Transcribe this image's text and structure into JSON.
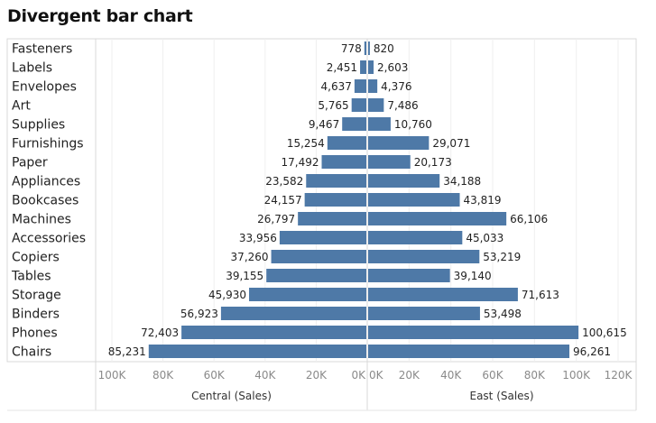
{
  "title": "Divergent bar chart",
  "chart_data": {
    "type": "bar",
    "orientation": "horizontal-diverging",
    "categories": [
      "Fasteners",
      "Labels",
      "Envelopes",
      "Art",
      "Supplies",
      "Furnishings",
      "Paper",
      "Appliances",
      "Bookcases",
      "Machines",
      "Accessories",
      "Copiers",
      "Tables",
      "Storage",
      "Binders",
      "Phones",
      "Chairs"
    ],
    "series": [
      {
        "name": "Central (Sales)",
        "side": "left",
        "values": [
          778,
          2451,
          4637,
          5765,
          9467,
          15254,
          17492,
          23582,
          24157,
          26797,
          33956,
          37260,
          39155,
          45930,
          56923,
          72403,
          85231
        ],
        "labels": [
          "778",
          "2,451",
          "4,637",
          "5,765",
          "9,467",
          "15,254",
          "17,492",
          "23,582",
          "24,157",
          "26,797",
          "33,956",
          "37,260",
          "39,155",
          "45,930",
          "56,923",
          "72,403",
          "85,231"
        ]
      },
      {
        "name": "East (Sales)",
        "side": "right",
        "values": [
          820,
          2603,
          4376,
          7486,
          10760,
          29071,
          20173,
          34188,
          43819,
          66106,
          45033,
          53219,
          39140,
          71613,
          53498,
          100615,
          96261
        ],
        "labels": [
          "820",
          "2,603",
          "4,376",
          "7,486",
          "10,760",
          "29,071",
          "20,173",
          "34,188",
          "43,819",
          "66,106",
          "45,033",
          "53,219",
          "39,140",
          "71,613",
          "53,498",
          "100,615",
          "96,261"
        ]
      }
    ],
    "left_axis": {
      "ticks": [
        100000,
        80000,
        60000,
        40000,
        20000,
        0
      ],
      "tick_labels": [
        "100K",
        "80K",
        "60K",
        "40K",
        "20K",
        "0K"
      ],
      "xlim": [
        0,
        100000
      ]
    },
    "right_axis": {
      "ticks": [
        0,
        20000,
        40000,
        60000,
        80000,
        100000,
        120000
      ],
      "tick_labels": [
        "0K",
        "20K",
        "40K",
        "60K",
        "80K",
        "100K",
        "120K"
      ],
      "xlim": [
        0,
        120000
      ]
    },
    "bar_color": "#4e79a7",
    "grid": true
  }
}
